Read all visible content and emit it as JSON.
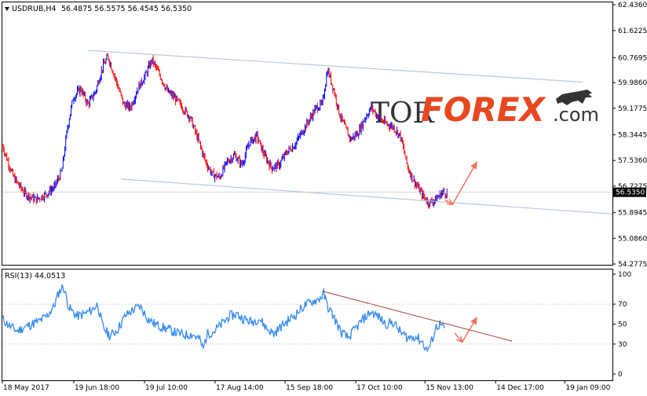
{
  "header": {
    "symbol": "USDRUB,H4",
    "ohlc": "56.4875 56.5575 56.4545 56.5350"
  },
  "rsi_header": "RSI(13) 44.0513",
  "logo": {
    "tor": "TOR",
    "forex": "FOREX",
    "com": ".com"
  },
  "chart_data": [
    {
      "type": "candlestick",
      "title": "USDRUB,H4",
      "y_ticks": [
        "62.4360",
        "61.6225",
        "60.7695",
        "59.9860",
        "59.1775",
        "58.3445",
        "57.5360",
        "56.7275",
        "55.8945",
        "55.0860",
        "54.2775"
      ],
      "x_ticks": [
        "18 May 2017",
        "19 Jun 18:00",
        "19 Jul 10:00",
        "17 Aug 14:00",
        "15 Sep 18:00",
        "17 Oct 10:00",
        "15 Nov 13:00",
        "14 Dec 17:00",
        "19 Jan 09:00"
      ],
      "ylim": [
        54.2775,
        62.436
      ],
      "last_price": "56.5350",
      "colors": {
        "up": "#0000ff",
        "down": "#ff0000",
        "channel": "#b8c8d8",
        "arrow": "#f07060"
      },
      "price_path": [
        [
          0,
          58.0
        ],
        [
          1.5,
          57.0
        ],
        [
          3,
          56.5
        ],
        [
          4.5,
          56.3
        ],
        [
          6,
          56.5
        ],
        [
          7,
          56.7
        ],
        [
          8,
          57.2
        ],
        [
          8.7,
          58.5
        ],
        [
          9.5,
          59.5
        ],
        [
          10.5,
          59.8
        ],
        [
          11.5,
          59.3
        ],
        [
          12.5,
          59.7
        ],
        [
          13.5,
          60.5
        ],
        [
          14.2,
          60.8
        ],
        [
          15.2,
          60.1
        ],
        [
          16.3,
          59.3
        ],
        [
          17.2,
          59.2
        ],
        [
          18.2,
          59.8
        ],
        [
          19.2,
          60.2
        ],
        [
          20.1,
          60.7
        ],
        [
          21.2,
          60.2
        ],
        [
          22.2,
          59.7
        ],
        [
          23.2,
          59.5
        ],
        [
          24.2,
          59.2
        ],
        [
          25.2,
          58.9
        ],
        [
          26.3,
          58.2
        ],
        [
          27.3,
          57.5
        ],
        [
          28.2,
          57.1
        ],
        [
          29.2,
          57.0
        ],
        [
          30.2,
          57.5
        ],
        [
          31.2,
          57.7
        ],
        [
          32.2,
          57.4
        ],
        [
          33.2,
          58.1
        ],
        [
          34.2,
          58.3
        ],
        [
          35.2,
          57.7
        ],
        [
          36.2,
          57.3
        ],
        [
          37.2,
          57.4
        ],
        [
          38.2,
          57.8
        ],
        [
          39.2,
          58.0
        ],
        [
          40.2,
          58.4
        ],
        [
          41.2,
          58.8
        ],
        [
          42.2,
          59.2
        ],
        [
          43.0,
          59.3
        ],
        [
          43.7,
          60.4
        ],
        [
          44.6,
          59.7
        ],
        [
          45.3,
          59.0
        ],
        [
          46.0,
          58.6
        ],
        [
          46.8,
          58.2
        ],
        [
          47.8,
          58.4
        ],
        [
          48.8,
          58.9
        ],
        [
          49.6,
          59.2
        ],
        [
          50.5,
          58.9
        ],
        [
          51.5,
          58.7
        ],
        [
          52.5,
          58.6
        ],
        [
          53.5,
          58.3
        ],
        [
          54.5,
          57.3
        ],
        [
          55.3,
          56.9
        ],
        [
          56.3,
          56.5
        ],
        [
          57.3,
          56.2
        ],
        [
          58.2,
          56.3
        ],
        [
          59.2,
          56.55
        ],
        [
          59.8,
          56.5
        ]
      ],
      "channel_upper": [
        [
          11.5,
          61.0
        ],
        [
          78,
          60.0
        ]
      ],
      "channel_lower": [
        [
          16,
          56.95
        ],
        [
          82,
          55.85
        ]
      ],
      "arrow": {
        "points": [
          [
            59.5,
            56.3
          ],
          [
            60.5,
            56.15
          ],
          [
            63.8,
            57.5
          ]
        ]
      }
    },
    {
      "type": "line",
      "title": "RSI(13) 44.0513",
      "y_ticks": [
        "100",
        "70",
        "50",
        "30",
        "0"
      ],
      "ylim": [
        0,
        100
      ],
      "color": "#3388ee",
      "values": [
        [
          0,
          55
        ],
        [
          1,
          48
        ],
        [
          2,
          43
        ],
        [
          3,
          47
        ],
        [
          4,
          50
        ],
        [
          5,
          53
        ],
        [
          6,
          58
        ],
        [
          7,
          69
        ],
        [
          7.6,
          82
        ],
        [
          8.2,
          88
        ],
        [
          9,
          66
        ],
        [
          10,
          58
        ],
        [
          11,
          60
        ],
        [
          12,
          64
        ],
        [
          12.8,
          70
        ],
        [
          13.5,
          47
        ],
        [
          14.5,
          38
        ],
        [
          15.5,
          45
        ],
        [
          16.5,
          58
        ],
        [
          17.5,
          64
        ],
        [
          18.5,
          68
        ],
        [
          19.5,
          56
        ],
        [
          20.5,
          50
        ],
        [
          21.5,
          47
        ],
        [
          22.5,
          44
        ],
        [
          23.5,
          41
        ],
        [
          24.5,
          39
        ],
        [
          25.5,
          40
        ],
        [
          26.5,
          35
        ],
        [
          27,
          25
        ],
        [
          27.5,
          40
        ],
        [
          28.5,
          43
        ],
        [
          29.5,
          50
        ],
        [
          30.5,
          58
        ],
        [
          31.5,
          60
        ],
        [
          32.5,
          55
        ],
        [
          33.5,
          52
        ],
        [
          34.5,
          56
        ],
        [
          35.5,
          46
        ],
        [
          36.5,
          40
        ],
        [
          37.5,
          48
        ],
        [
          38.5,
          54
        ],
        [
          39.5,
          60
        ],
        [
          40.5,
          68
        ],
        [
          41.5,
          72
        ],
        [
          42.5,
          75
        ],
        [
          43.2,
          80
        ],
        [
          43.7,
          68
        ],
        [
          44.5,
          58
        ],
        [
          45.5,
          42
        ],
        [
          46.5,
          36
        ],
        [
          47.5,
          46
        ],
        [
          48.5,
          55
        ],
        [
          49.5,
          62
        ],
        [
          50.5,
          58
        ],
        [
          51.5,
          50
        ],
        [
          52.5,
          52
        ],
        [
          53.5,
          42
        ],
        [
          54.5,
          36
        ],
        [
          55.5,
          38
        ],
        [
          56.5,
          32
        ],
        [
          57,
          24
        ],
        [
          57.5,
          28
        ],
        [
          58.3,
          47
        ],
        [
          58.8,
          50
        ],
        [
          59.5,
          44
        ]
      ],
      "trendline": [
        [
          43,
          83
        ],
        [
          68.5,
          33
        ]
      ],
      "arrow": {
        "points": [
          [
            60.8,
            41
          ],
          [
            61.8,
            32
          ],
          [
            63.8,
            57
          ]
        ]
      }
    }
  ]
}
